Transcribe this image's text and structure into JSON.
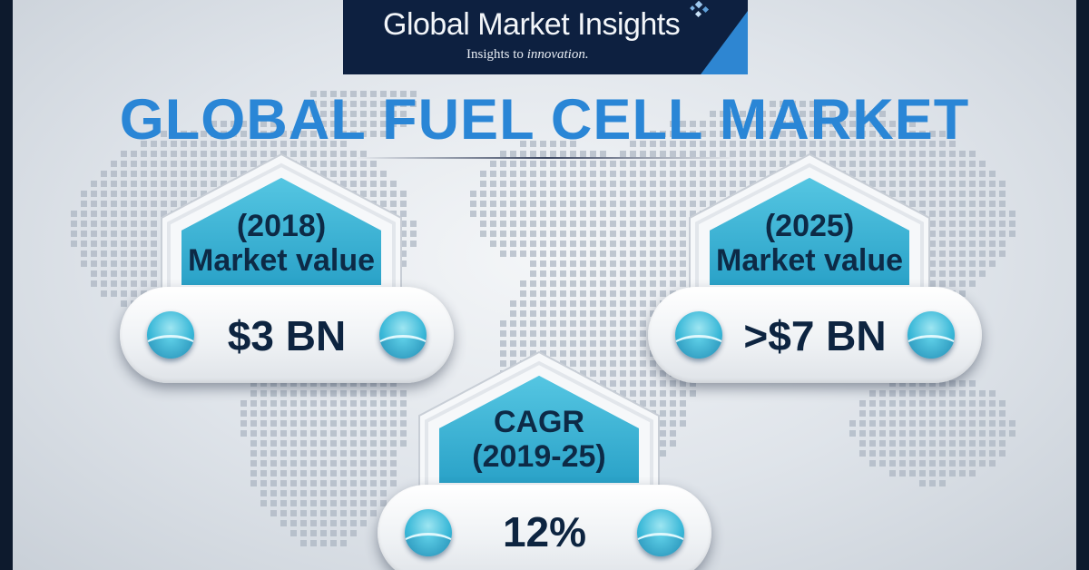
{
  "header": {
    "brand_name": "Global Market Insights",
    "tagline_prefix": "Insights to ",
    "tagline_emphasis": "innovation."
  },
  "title": "GLOBAL FUEL CELL MARKET",
  "cards": {
    "left": {
      "label_line1": "(2018)",
      "label_line2": "Market value",
      "value": "$3 BN"
    },
    "right": {
      "label_line1": "(2025)",
      "label_line2": "Market value",
      "value": ">$7 BN"
    },
    "center": {
      "label_line1": "CAGR",
      "label_line2": "(2019-25)",
      "value": "12%"
    }
  },
  "colors": {
    "title_blue": "#2a86d6",
    "label_teal": "#3bb4d4",
    "dark_navy": "#0d2040",
    "text_navy": "#0d2440"
  }
}
